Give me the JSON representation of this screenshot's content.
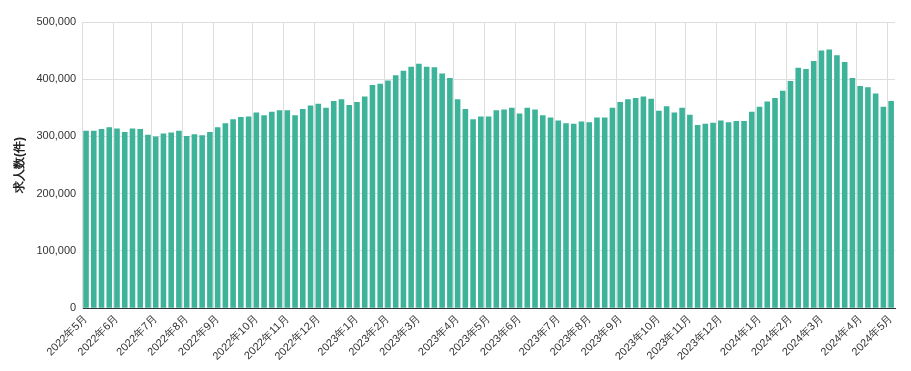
{
  "chart_data": {
    "type": "bar",
    "y_label": "求人数(件)",
    "categories": [
      "2022年5月",
      null,
      null,
      null,
      "2022年6月",
      null,
      null,
      null,
      null,
      "2022年7月",
      null,
      null,
      null,
      "2022年8月",
      null,
      null,
      null,
      "2022年9月",
      null,
      null,
      null,
      null,
      "2022年10月",
      null,
      null,
      null,
      "2022年11月",
      null,
      null,
      null,
      "2022年12月",
      null,
      null,
      null,
      null,
      "2023年1月",
      null,
      null,
      null,
      "2023年2月",
      null,
      null,
      null,
      "2023年3月",
      null,
      null,
      null,
      null,
      "2023年4月",
      null,
      null,
      null,
      "2023年5月",
      null,
      null,
      null,
      "2023年6月",
      null,
      null,
      null,
      null,
      "2023年7月",
      null,
      null,
      null,
      "2023年8月",
      null,
      null,
      null,
      "2023年9月",
      null,
      null,
      null,
      null,
      "2023年10月",
      null,
      null,
      null,
      "2023年11月",
      null,
      null,
      null,
      "2023年12月",
      null,
      null,
      null,
      null,
      "2024年1月",
      null,
      null,
      null,
      "2024年2月",
      null,
      null,
      null,
      "2024年3月",
      null,
      null,
      null,
      null,
      "2024年4月",
      null,
      null,
      null,
      "2024年5月"
    ],
    "values": [
      310000,
      310000,
      313000,
      316000,
      314000,
      308000,
      314000,
      313000,
      303000,
      300000,
      305000,
      307000,
      310000,
      301000,
      304000,
      302000,
      308000,
      316000,
      323000,
      330000,
      334000,
      335000,
      342000,
      337000,
      343000,
      346000,
      346000,
      337000,
      348000,
      354000,
      357000,
      350000,
      362000,
      365000,
      355000,
      360000,
      370000,
      390000,
      392000,
      398000,
      407000,
      415000,
      422000,
      427000,
      422000,
      421000,
      410000,
      402000,
      365000,
      348000,
      330000,
      335000,
      335000,
      346000,
      347000,
      350000,
      340000,
      350000,
      347000,
      337000,
      333000,
      328000,
      323000,
      322000,
      326000,
      325000,
      333000,
      333000,
      350000,
      360000,
      365000,
      367000,
      370000,
      366000,
      345000,
      353000,
      342000,
      350000,
      338000,
      320000,
      322000,
      324000,
      328000,
      325000,
      327000,
      327000,
      343000,
      352000,
      361000,
      367000,
      380000,
      397000,
      420000,
      418000,
      432000,
      450000,
      452000,
      442000,
      430000,
      402000,
      388000,
      386000,
      375000,
      352000,
      362000
    ],
    "color": "#3db39a",
    "ylim": [
      0,
      500000
    ],
    "yticks": [
      {
        "value": 0,
        "label": "0"
      },
      {
        "value": 100000,
        "label": "100,000"
      },
      {
        "value": 200000,
        "label": "200,000"
      },
      {
        "value": 300000,
        "label": "300,000"
      },
      {
        "value": 400000,
        "label": "400,000"
      },
      {
        "value": 500000,
        "label": "500,000"
      }
    ],
    "grid": true
  }
}
